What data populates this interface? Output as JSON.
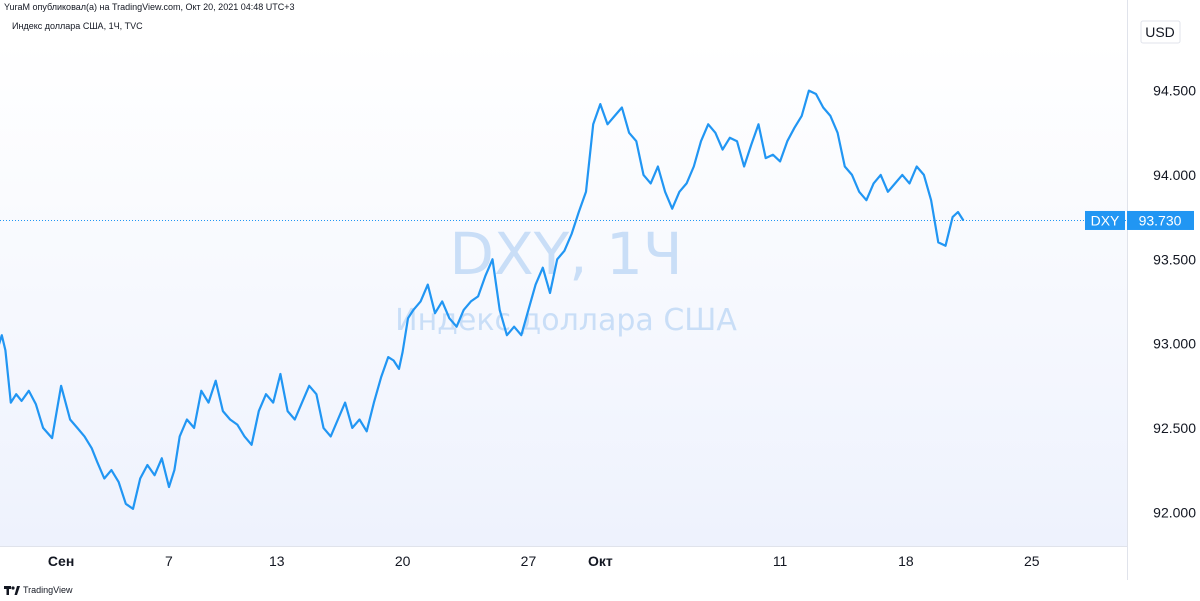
{
  "header": {
    "text": "YuraM опубликовал(а) на TradingView.com, Окт 20, 2021 04:48 UTC+3"
  },
  "subtitle": "Индекс доллара США, 1Ч, TVC",
  "currency_label": "USD",
  "watermark": {
    "main": "DXY, 1Ч",
    "sub": "Индекс доллара США"
  },
  "price_badge": {
    "symbol": "DXY",
    "value": "93.730"
  },
  "footer": {
    "brand": "TradingView"
  },
  "colors": {
    "line": "#2196f3",
    "badge": "#2196f3",
    "background_top": "#ffffff",
    "background_bottom": "#eef2fd"
  },
  "chart_data": {
    "type": "line",
    "title": "Индекс доллара США, 1Ч, TVC",
    "xlabel": "",
    "ylabel": "USD",
    "ylim": [
      91.8,
      94.8
    ],
    "y_ticks": [
      "94.500",
      "94.000",
      "93.500",
      "93.000",
      "92.500",
      "92.000"
    ],
    "y_tick_values": [
      94.5,
      94.0,
      93.5,
      93.0,
      92.5,
      92.0
    ],
    "x_ticks": [
      {
        "label": "Сен",
        "pos": 0,
        "bold": true
      },
      {
        "label": "7",
        "pos": 6,
        "bold": false
      },
      {
        "label": "13",
        "pos": 12,
        "bold": false
      },
      {
        "label": "20",
        "pos": 19,
        "bold": false
      },
      {
        "label": "27",
        "pos": 26,
        "bold": false
      },
      {
        "label": "Окт",
        "pos": 30,
        "bold": true
      },
      {
        "label": "11",
        "pos": 40,
        "bold": false
      },
      {
        "label": "18",
        "pos": 47,
        "bold": false
      },
      {
        "label": "25",
        "pos": 54,
        "bold": false
      }
    ],
    "x_range": [
      -3.4,
      59.3
    ],
    "last_value": 93.73,
    "series": [
      {
        "x": [
          -3.5,
          -3.3,
          -3.1,
          -2.8,
          -2.5,
          -2.2,
          -1.8,
          -1.4,
          -1.0,
          -0.5,
          0.0,
          0.5,
          0.9,
          1.3,
          1.7,
          2.0,
          2.4,
          2.8,
          3.2,
          3.6,
          4.0,
          4.4,
          4.8,
          5.2,
          5.6,
          6.0,
          6.3,
          6.6,
          7.0,
          7.4,
          7.8,
          8.2,
          8.6,
          9.0,
          9.4,
          9.8,
          10.2,
          10.6,
          11.0,
          11.4,
          11.8,
          12.2,
          12.6,
          13.0,
          13.4,
          13.8,
          14.2,
          14.6,
          15.0,
          15.4,
          15.8,
          16.2,
          16.6,
          17.0,
          17.4,
          17.8,
          18.2,
          18.5,
          18.8,
          19.0,
          19.3,
          19.6,
          20.0,
          20.4,
          20.8,
          21.2,
          21.6,
          22.0,
          22.4,
          22.8,
          23.2,
          23.6,
          24.0,
          24.4,
          24.8,
          25.2,
          25.6,
          26.0,
          26.4,
          26.8,
          27.2,
          27.6,
          28.0,
          28.4,
          28.8,
          29.2,
          29.6,
          30.0,
          30.4,
          30.8,
          31.2,
          31.6,
          32.0,
          32.4,
          32.8,
          33.2,
          33.6,
          34.0,
          34.4,
          34.8,
          35.2,
          35.6,
          36.0,
          36.4,
          36.8,
          37.2,
          37.6,
          38.0,
          38.4,
          38.8,
          39.2,
          39.6,
          40.0,
          40.4,
          40.8,
          41.2,
          41.6,
          42.0,
          42.4,
          42.8,
          43.2,
          43.6,
          44.0,
          44.4,
          44.8,
          45.2,
          45.6,
          46.0,
          46.4,
          46.8,
          47.2,
          47.6,
          48.0,
          48.4,
          48.8,
          49.2,
          49.6,
          49.9,
          50.2
        ],
        "y": [
          92.98,
          93.05,
          92.96,
          92.65,
          92.7,
          92.66,
          92.72,
          92.64,
          92.5,
          92.44,
          92.75,
          92.55,
          92.5,
          92.45,
          92.38,
          92.3,
          92.2,
          92.25,
          92.18,
          92.05,
          92.02,
          92.2,
          92.28,
          92.22,
          92.32,
          92.15,
          92.25,
          92.45,
          92.55,
          92.5,
          92.72,
          92.65,
          92.78,
          92.6,
          92.55,
          92.52,
          92.45,
          92.4,
          92.6,
          92.7,
          92.65,
          92.82,
          92.6,
          92.55,
          92.65,
          92.75,
          92.7,
          92.5,
          92.45,
          92.55,
          92.65,
          92.5,
          92.55,
          92.48,
          92.65,
          92.8,
          92.92,
          92.9,
          92.85,
          92.95,
          93.15,
          93.2,
          93.25,
          93.35,
          93.18,
          93.25,
          93.15,
          93.1,
          93.2,
          93.25,
          93.28,
          93.4,
          93.5,
          93.2,
          93.05,
          93.1,
          93.05,
          93.2,
          93.35,
          93.45,
          93.3,
          93.5,
          93.55,
          93.65,
          93.78,
          93.9,
          94.3,
          94.42,
          94.3,
          94.35,
          94.4,
          94.25,
          94.2,
          94.0,
          93.95,
          94.05,
          93.9,
          93.8,
          93.9,
          93.95,
          94.05,
          94.2,
          94.3,
          94.25,
          94.15,
          94.22,
          94.2,
          94.05,
          94.18,
          94.3,
          94.1,
          94.12,
          94.08,
          94.2,
          94.28,
          94.35,
          94.5,
          94.48,
          94.4,
          94.35,
          94.25,
          94.05,
          94.0,
          93.9,
          93.85,
          93.95,
          94.0,
          93.9,
          93.95,
          94.0,
          93.95,
          94.05,
          94.0,
          93.85,
          93.6,
          93.58,
          93.75,
          93.78,
          93.73
        ]
      }
    ]
  }
}
